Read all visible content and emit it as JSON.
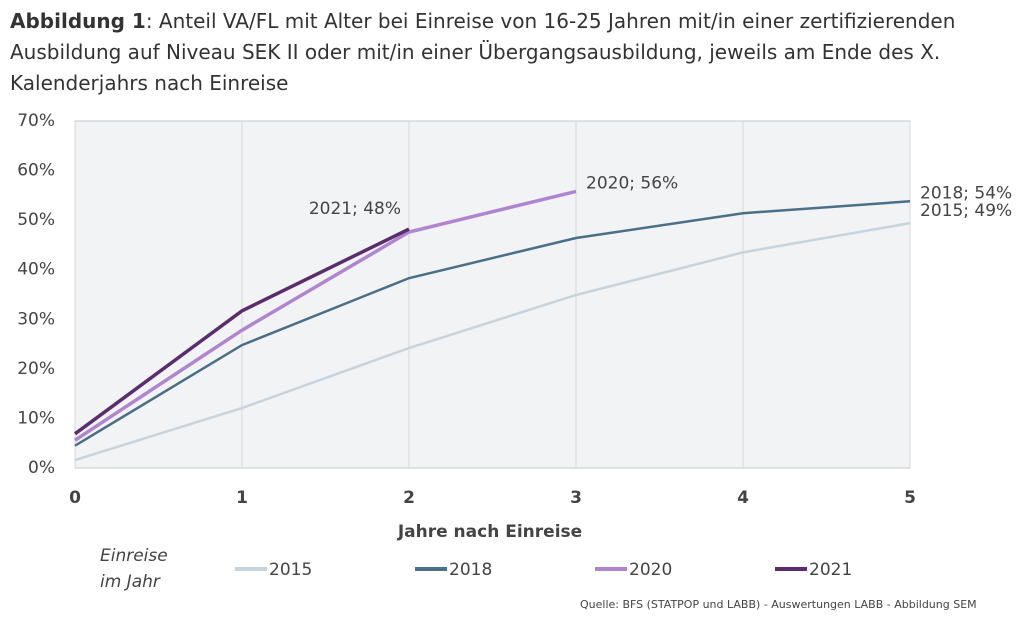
{
  "chart_data": {
    "type": "line",
    "figure_label": "Abbildung 1",
    "title": ":  Anteil VA/FL mit Alter bei Einreise von 16-25 Jahren mit/in einer zertifizierenden Ausbildung auf Niveau SEK II oder mit/in einer Übergangsausbildung, jeweils am Ende des X. Kalenderjahrs nach Einreise",
    "x_label": "Jahre nach Einreise",
    "x": [
      0,
      1,
      2,
      3,
      4,
      5
    ],
    "xlim": [
      0,
      5
    ],
    "xticks": [
      0,
      1,
      2,
      3,
      4,
      5
    ],
    "ylim": [
      0,
      70
    ],
    "yticks": [
      {
        "value": 0,
        "label": "0%"
      },
      {
        "value": 10,
        "label": "10%"
      },
      {
        "value": 20,
        "label": "20%"
      },
      {
        "value": 30,
        "label": "30%"
      },
      {
        "value": 40,
        "label": "40%"
      },
      {
        "value": 50,
        "label": "50%"
      },
      {
        "value": 60,
        "label": "60%"
      },
      {
        "value": 70,
        "label": "70%"
      }
    ],
    "grid": true,
    "legend_title": "Einreise im Jahr",
    "series": [
      {
        "name": "2015",
        "color": "#c5d4de",
        "values": [
          1.6,
          12.1,
          24.2,
          34.9,
          43.5,
          49.4
        ],
        "end_label": "2015; 49%"
      },
      {
        "name": "2018",
        "color": "#4a6f86",
        "values": [
          4.5,
          24.8,
          38.3,
          46.4,
          51.4,
          53.8
        ],
        "end_label": "2018; 54%"
      },
      {
        "name": "2020",
        "color": "#b085d0",
        "values": [
          5.6,
          27.8,
          47.6,
          55.8,
          null,
          null
        ],
        "end_label": "2020; 56%"
      },
      {
        "name": "2021",
        "color": "#5a2d6e",
        "values": [
          6.9,
          31.7,
          48.2,
          null,
          null,
          null
        ],
        "end_label": "2021; 48%"
      }
    ],
    "source": "Quelle: BFS (STATPOP und LABB) - Auswertungen LABB -  Abbildung SEM"
  }
}
